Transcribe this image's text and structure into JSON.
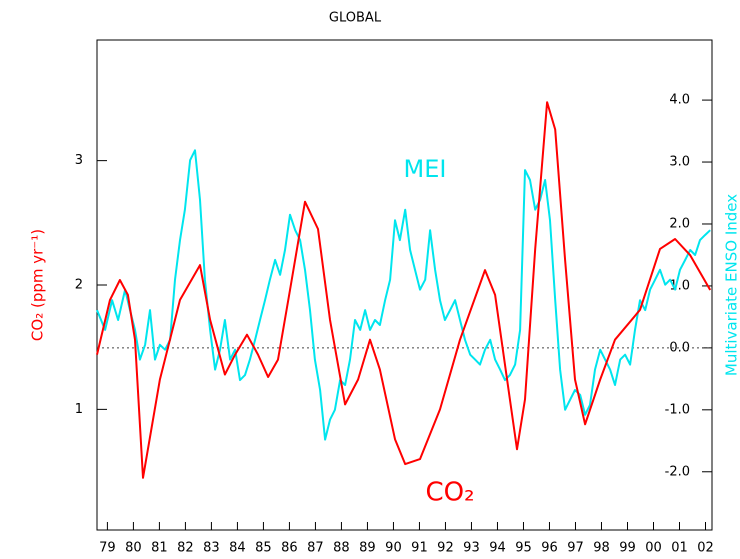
{
  "chart_data": {
    "type": "line",
    "title": "GLOBAL",
    "ylabel": "CO₂ (ppm yr⁻¹)",
    "y2label": "Multivariate ENSO Index",
    "ylabel_color": "#ff0000",
    "y2label_color": "#00e5ee",
    "xlim": [
      1979.1,
      2002.75
    ],
    "xticks": [
      {
        "value": 1979.5,
        "label": "79"
      },
      {
        "value": 1980.5,
        "label": "80"
      },
      {
        "value": 1981.5,
        "label": "81"
      },
      {
        "value": 1982.5,
        "label": "82"
      },
      {
        "value": 1983.5,
        "label": "83"
      },
      {
        "value": 1984.5,
        "label": "84"
      },
      {
        "value": 1985.5,
        "label": "85"
      },
      {
        "value": 1986.5,
        "label": "86"
      },
      {
        "value": 1987.5,
        "label": "87"
      },
      {
        "value": 1988.5,
        "label": "88"
      },
      {
        "value": 1989.5,
        "label": "89"
      },
      {
        "value": 1990.5,
        "label": "90"
      },
      {
        "value": 1991.5,
        "label": "91"
      },
      {
        "value": 1992.5,
        "label": "92"
      },
      {
        "value": 1993.5,
        "label": "93"
      },
      {
        "value": 1994.5,
        "label": "94"
      },
      {
        "value": 1995.5,
        "label": "95"
      },
      {
        "value": 1996.5,
        "label": "96"
      },
      {
        "value": 1997.5,
        "label": "97"
      },
      {
        "value": 1998.5,
        "label": "98"
      },
      {
        "value": 1999.5,
        "label": "99"
      },
      {
        "value": 2000.5,
        "label": "00"
      },
      {
        "value": 2001.5,
        "label": "01"
      },
      {
        "value": 2002.5,
        "label": "02"
      }
    ],
    "ylim": [
      0.03,
      3.97
    ],
    "yticks": [
      1,
      2,
      3
    ],
    "y2lim": [
      -2.94,
      4.97
    ],
    "y2ticks": [
      {
        "value": -2,
        "label": "-2.0"
      },
      {
        "value": -1,
        "label": "-1.0"
      },
      {
        "value": 0,
        "label": "0.0"
      },
      {
        "value": 1,
        "label": "1.0"
      },
      {
        "value": 2,
        "label": "2.0"
      },
      {
        "value": 3,
        "label": "3.0"
      },
      {
        "value": 4,
        "label": "4.0"
      }
    ],
    "y2_reference_line": 0,
    "series": [
      {
        "name": "CO₂",
        "color": "#ff0000",
        "axis": "y",
        "x": [
          1979.1,
          1979.6,
          1979.98,
          1980.29,
          1980.56,
          1980.87,
          1981.52,
          1982.29,
          1983.06,
          1983.45,
          1984.02,
          1984.41,
          1984.87,
          1985.29,
          1985.68,
          1986.06,
          1986.52,
          1987.1,
          1987.6,
          1988.06,
          1988.64,
          1989.14,
          1989.6,
          1989.98,
          1990.56,
          1990.95,
          1991.52,
          1992.29,
          1993.06,
          1994.02,
          1994.41,
          1994.98,
          1995.25,
          1995.56,
          1995.95,
          1996.41,
          1996.72,
          1997.1,
          1997.48,
          1997.87,
          1998.45,
          1999.02,
          1999.98,
          2000.75,
          2001.33,
          2001.91,
          2002.68
        ],
        "values": [
          1.44,
          1.88,
          2.04,
          1.92,
          1.56,
          0.45,
          1.24,
          1.88,
          2.16,
          1.72,
          1.28,
          1.44,
          1.6,
          1.44,
          1.26,
          1.4,
          1.96,
          2.67,
          2.45,
          1.72,
          1.04,
          1.24,
          1.56,
          1.32,
          0.76,
          0.56,
          0.6,
          1.0,
          1.56,
          2.12,
          1.92,
          1.08,
          0.68,
          1.08,
          2.29,
          3.47,
          3.25,
          2.2,
          1.24,
          0.88,
          1.24,
          1.56,
          1.8,
          2.29,
          2.37,
          2.24,
          1.96
        ]
      },
      {
        "name": "MEI",
        "color": "#00e5ee",
        "axis": "y2",
        "x": [
          1979.1,
          1979.41,
          1979.68,
          1979.91,
          1980.18,
          1980.37,
          1980.56,
          1980.75,
          1980.95,
          1981.14,
          1981.33,
          1981.52,
          1981.72,
          1981.91,
          1982.1,
          1982.29,
          1982.48,
          1982.68,
          1982.87,
          1983.06,
          1983.25,
          1983.45,
          1983.64,
          1983.83,
          1984.02,
          1984.22,
          1984.41,
          1984.6,
          1984.79,
          1984.98,
          1985.18,
          1985.37,
          1985.56,
          1985.75,
          1985.95,
          1986.14,
          1986.33,
          1986.52,
          1986.72,
          1986.91,
          1987.1,
          1987.29,
          1987.48,
          1987.68,
          1987.87,
          1988.06,
          1988.25,
          1988.45,
          1988.64,
          1988.83,
          1989.02,
          1989.22,
          1989.41,
          1989.6,
          1989.79,
          1989.98,
          1990.18,
          1990.37,
          1990.56,
          1990.75,
          1990.95,
          1991.14,
          1991.33,
          1991.52,
          1991.72,
          1991.91,
          1992.1,
          1992.29,
          1992.48,
          1992.68,
          1992.87,
          1993.06,
          1993.25,
          1993.45,
          1993.64,
          1993.83,
          1994.02,
          1994.22,
          1994.41,
          1994.6,
          1994.79,
          1994.98,
          1995.18,
          1995.37,
          1995.56,
          1995.75,
          1995.95,
          1996.14,
          1996.33,
          1996.52,
          1996.72,
          1996.91,
          1997.1,
          1997.29,
          1997.48,
          1997.68,
          1997.87,
          1998.06,
          1998.25,
          1998.45,
          1998.64,
          1998.83,
          1999.02,
          1999.22,
          1999.41,
          1999.6,
          1999.79,
          1999.98,
          2000.18,
          2000.37,
          2000.56,
          2000.75,
          2000.95,
          2001.14,
          2001.33,
          2001.52,
          2001.72,
          2001.91,
          2002.1,
          2002.29,
          2002.48,
          2002.68
        ],
        "values": [
          0.61,
          0.29,
          0.77,
          0.45,
          0.94,
          0.61,
          0.29,
          -0.19,
          0.05,
          0.61,
          -0.19,
          0.05,
          -0.03,
          0.13,
          1.1,
          1.74,
          2.23,
          3.03,
          3.19,
          2.39,
          1.1,
          0.29,
          -0.35,
          -0.03,
          0.45,
          -0.19,
          -0.03,
          -0.52,
          -0.44,
          -0.19,
          0.13,
          0.45,
          0.77,
          1.1,
          1.42,
          1.18,
          1.58,
          2.15,
          1.9,
          1.74,
          1.26,
          0.61,
          -0.19,
          -0.68,
          -1.48,
          -1.16,
          -1.0,
          -0.52,
          -0.6,
          -0.19,
          0.45,
          0.29,
          0.61,
          0.29,
          0.45,
          0.37,
          0.77,
          1.1,
          2.06,
          1.74,
          2.23,
          1.58,
          1.26,
          0.94,
          1.1,
          1.9,
          1.26,
          0.77,
          0.45,
          0.61,
          0.77,
          0.45,
          0.13,
          -0.11,
          -0.19,
          -0.27,
          -0.03,
          0.13,
          -0.19,
          -0.35,
          -0.52,
          -0.44,
          -0.27,
          0.29,
          2.87,
          2.71,
          2.23,
          2.39,
          2.71,
          2.06,
          0.77,
          -0.35,
          -1.0,
          -0.84,
          -0.68,
          -0.76,
          -1.08,
          -0.92,
          -0.35,
          -0.03,
          -0.19,
          -0.35,
          -0.6,
          -0.19,
          -0.11,
          -0.27,
          0.29,
          0.77,
          0.61,
          0.94,
          1.1,
          1.26,
          1.02,
          1.1,
          0.94,
          1.26,
          1.42,
          1.58,
          1.5,
          1.74,
          1.82,
          1.9
        ]
      }
    ]
  }
}
